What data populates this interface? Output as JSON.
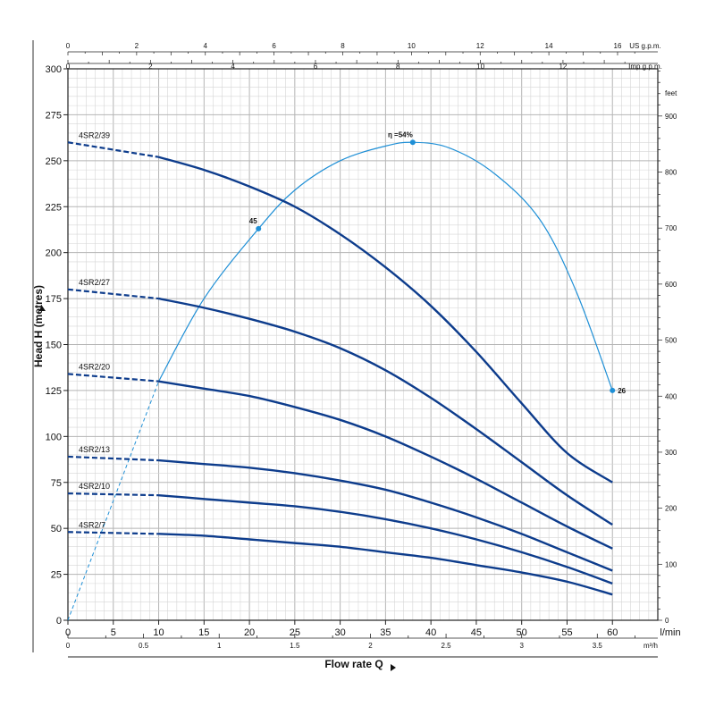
{
  "chart_data": {
    "type": "line",
    "ylabel": "Head H (metres)",
    "xlabel": "Flow rate Q",
    "axes": {
      "x_lmin": {
        "unit": "l/min",
        "range": [
          0,
          65
        ],
        "ticks": [
          0,
          5,
          10,
          15,
          20,
          25,
          30,
          35,
          40,
          45,
          50,
          55,
          60
        ]
      },
      "x_m3h": {
        "unit": "m³/h",
        "ticks": [
          0,
          0.5,
          1,
          1.5,
          2,
          2.5,
          3,
          3.5
        ]
      },
      "x_usgpm": {
        "unit": "US g.p.m.",
        "ticks": [
          0,
          2,
          4,
          6,
          8,
          10,
          12,
          14,
          16
        ]
      },
      "x_impgpm": {
        "unit": "Imp g.p.m.",
        "ticks": [
          0,
          2,
          4,
          6,
          8,
          10,
          12
        ]
      },
      "y_m": {
        "range": [
          0,
          300
        ],
        "ticks": [
          0,
          25,
          50,
          75,
          100,
          125,
          150,
          175,
          200,
          225,
          250,
          275,
          300
        ]
      },
      "y_ft": {
        "unit": "feet",
        "ticks": [
          0,
          100,
          200,
          300,
          400,
          500,
          600,
          700,
          800,
          900
        ]
      }
    },
    "grid": true,
    "series": [
      {
        "name": "4SR2/39",
        "x": [
          0,
          10,
          15,
          20,
          25,
          30,
          35,
          40,
          45,
          50,
          55,
          60
        ],
        "y": [
          260,
          252,
          245,
          236,
          225,
          210,
          192,
          171,
          146,
          118,
          91,
          75
        ]
      },
      {
        "name": "4SR2/27",
        "x": [
          0,
          10,
          15,
          20,
          25,
          30,
          35,
          40,
          45,
          50,
          55,
          60
        ],
        "y": [
          180,
          175,
          170,
          164,
          157,
          148,
          136,
          121,
          104,
          86,
          68,
          52
        ]
      },
      {
        "name": "4SR2/20",
        "x": [
          0,
          10,
          15,
          20,
          25,
          30,
          35,
          40,
          45,
          50,
          55,
          60
        ],
        "y": [
          134,
          130,
          126,
          122,
          116,
          109,
          100,
          89,
          77,
          64,
          51,
          39
        ]
      },
      {
        "name": "4SR2/13",
        "x": [
          0,
          10,
          15,
          20,
          25,
          30,
          35,
          40,
          45,
          50,
          55,
          60
        ],
        "y": [
          89,
          87,
          85,
          83,
          80,
          76,
          71,
          64,
          56,
          47,
          37,
          27
        ]
      },
      {
        "name": "4SR2/10",
        "x": [
          0,
          10,
          15,
          20,
          25,
          30,
          35,
          40,
          45,
          50,
          55,
          60
        ],
        "y": [
          69,
          68,
          66,
          64,
          62,
          59,
          55,
          50,
          44,
          37,
          29,
          20
        ]
      },
      {
        "name": "4SR2/7",
        "x": [
          0,
          10,
          15,
          20,
          25,
          30,
          35,
          40,
          45,
          50,
          55,
          60
        ],
        "y": [
          48,
          47,
          46,
          44,
          42,
          40,
          37,
          34,
          30,
          26,
          21,
          14
        ]
      }
    ],
    "efficiency_curve": {
      "x": [
        0,
        5,
        10,
        15,
        21,
        25,
        30,
        35,
        38,
        42,
        47,
        52,
        56,
        60
      ],
      "y": [
        0,
        65,
        130,
        175,
        213,
        234,
        250,
        258,
        260,
        257,
        243,
        218,
        179,
        125
      ],
      "points": [
        {
          "label": "45",
          "x": 21,
          "y": 213
        },
        {
          "label": "η =54%",
          "x": 38,
          "y": 260
        },
        {
          "label": "26",
          "x": 60,
          "y": 125
        }
      ]
    },
    "colors": {
      "series": "#0d3c8c",
      "efficiency": "#1e8fd6",
      "grid": "#b5b5b5",
      "grid_minor": "#d6d6d6"
    }
  }
}
